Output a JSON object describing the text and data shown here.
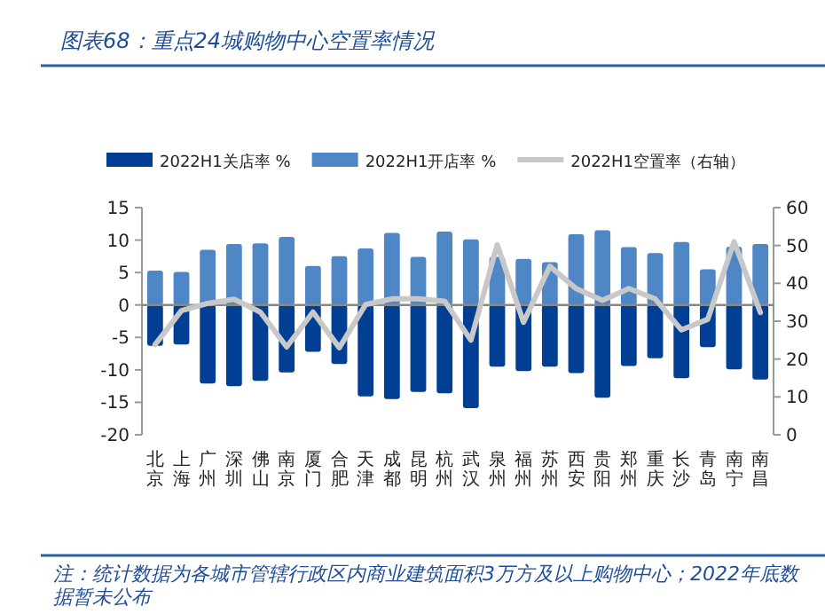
{
  "chart_data": {
    "type": "bar",
    "title": "图表68：重点24城购物中心空置率情况",
    "annotations": [
      "注：统计数据为各城市管辖行政区内商业建筑面积3万方及以上购物中心；2022年底数据暂未公布"
    ],
    "categories": [
      "北京",
      "上海",
      "广州",
      "深圳",
      "佛山",
      "南京",
      "厦门",
      "合肥",
      "天津",
      "成都",
      "昆明",
      "杭州",
      "武汉",
      "泉州",
      "福州",
      "苏州",
      "西安",
      "贵阳",
      "郑州",
      "重庆",
      "长沙",
      "青岛",
      "南宁",
      "南昌"
    ],
    "stacked": true,
    "legend": "top",
    "ref_lines": [
      {
        "axis": "y",
        "value": 0,
        "color": "#888888"
      }
    ],
    "ylim": [
      -20,
      15
    ],
    "yticks": [
      -20,
      -15,
      -10,
      -5,
      0,
      5,
      10,
      15
    ],
    "y2lim": [
      0,
      60
    ],
    "y2ticks": [
      0,
      10,
      20,
      30,
      40,
      50,
      60
    ],
    "series": [
      {
        "name": "2022H1关店率 %",
        "color": "#003f93",
        "values": [
          -6.3,
          -6.1,
          -12.1,
          -12.5,
          -11.7,
          -10.4,
          -7.2,
          -9.1,
          -14.1,
          -14.5,
          -13.4,
          -13.6,
          -15.9,
          -9.5,
          -10.2,
          -9.5,
          -10.5,
          -14.3,
          -9.4,
          -8.2,
          -11.3,
          -6.5,
          -9.9,
          -11.5
        ]
      },
      {
        "name": "2022H1开店率 %",
        "color": "#4f86c6",
        "values": [
          5.3,
          5.1,
          8.5,
          9.4,
          9.5,
          10.5,
          6.0,
          7.5,
          8.7,
          11.1,
          7.4,
          11.3,
          10.1,
          7.4,
          7.1,
          6.6,
          10.9,
          11.5,
          8.9,
          8.0,
          9.7,
          5.5,
          9.0,
          9.4
        ]
      },
      {
        "name": "2022H1空置率（右轴）",
        "type": "line",
        "axis": "y2",
        "color": "#c8c8c8",
        "values": [
          23.8,
          32.8,
          34.7,
          35.8,
          32.4,
          23.2,
          32.4,
          23.0,
          34.4,
          35.9,
          35.9,
          35.3,
          25.0,
          50.2,
          29.7,
          44.5,
          38.6,
          35.5,
          38.6,
          35.9,
          27.7,
          30.5,
          51.0,
          32.3
        ]
      }
    ]
  }
}
